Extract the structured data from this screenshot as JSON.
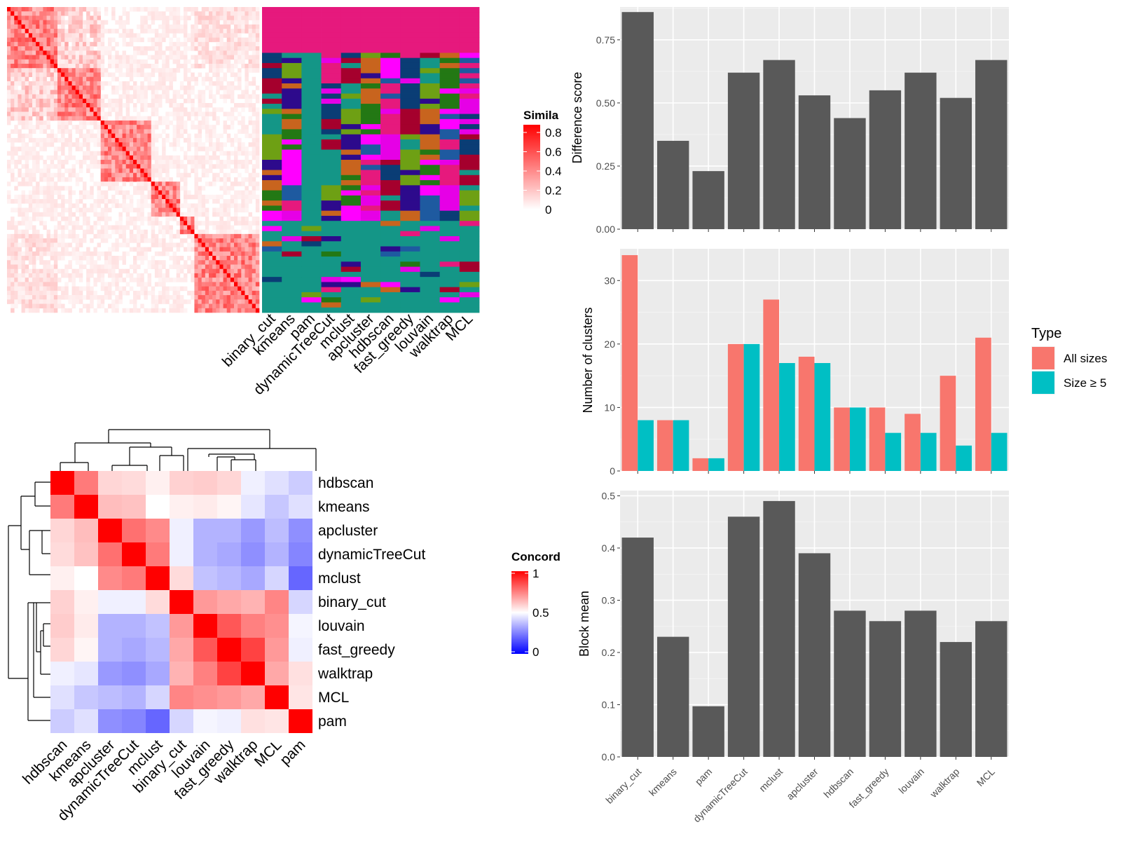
{
  "chart_data": [
    {
      "type": "heatmap",
      "legend_title": "Simila",
      "legend_ticks": [
        "0.8",
        "0.6",
        "0.4",
        "0.2",
        "0"
      ],
      "color_low": "#ffffff",
      "color_high": "#ff0000",
      "panel_columns": [
        "binary_cut",
        "kmeans",
        "pam",
        "dynamicTreeCut",
        "mclust",
        "apcluster",
        "hdbscan",
        "fast_greedy",
        "louvain",
        "walktrap",
        "MCL"
      ]
    },
    {
      "type": "heatmap",
      "legend_title": "Concord",
      "legend_ticks": [
        "1",
        "0.5",
        "0"
      ],
      "color_low": "#0000ff",
      "color_mid": "#ffffff",
      "color_high": "#ff0000",
      "rows": [
        "hdbscan",
        "kmeans",
        "apcluster",
        "dynamicTreeCut",
        "mclust",
        "binary_cut",
        "louvain",
        "fast_greedy",
        "walktrap",
        "MCL",
        "pam"
      ],
      "columns": [
        "hdbscan",
        "kmeans",
        "apcluster",
        "dynamicTreeCut",
        "mclust",
        "binary_cut",
        "louvain",
        "fast_greedy",
        "walktrap",
        "MCL",
        "pam"
      ],
      "values": [
        [
          1.0,
          0.76,
          0.58,
          0.57,
          0.53,
          0.59,
          0.6,
          0.58,
          0.47,
          0.44,
          0.4
        ],
        [
          0.76,
          1.0,
          0.63,
          0.62,
          0.5,
          0.53,
          0.54,
          0.52,
          0.45,
          0.39,
          0.44
        ],
        [
          0.58,
          0.63,
          1.0,
          0.78,
          0.73,
          0.47,
          0.35,
          0.35,
          0.3,
          0.37,
          0.28
        ],
        [
          0.57,
          0.62,
          0.78,
          1.0,
          0.76,
          0.47,
          0.35,
          0.33,
          0.28,
          0.35,
          0.26
        ],
        [
          0.53,
          0.5,
          0.73,
          0.76,
          1.0,
          0.57,
          0.38,
          0.36,
          0.33,
          0.42,
          0.2
        ],
        [
          0.59,
          0.53,
          0.47,
          0.47,
          0.57,
          1.0,
          0.7,
          0.67,
          0.65,
          0.74,
          0.42
        ],
        [
          0.6,
          0.54,
          0.35,
          0.35,
          0.38,
          0.7,
          1.0,
          0.83,
          0.75,
          0.72,
          0.48
        ],
        [
          0.58,
          0.52,
          0.35,
          0.33,
          0.36,
          0.67,
          0.83,
          1.0,
          0.87,
          0.7,
          0.47
        ],
        [
          0.47,
          0.45,
          0.3,
          0.28,
          0.33,
          0.65,
          0.75,
          0.87,
          1.0,
          0.67,
          0.56
        ],
        [
          0.44,
          0.39,
          0.37,
          0.35,
          0.42,
          0.74,
          0.72,
          0.7,
          0.67,
          1.0,
          0.55
        ],
        [
          0.4,
          0.44,
          0.28,
          0.26,
          0.2,
          0.42,
          0.48,
          0.47,
          0.56,
          0.55,
          1.0
        ]
      ]
    },
    {
      "type": "bar",
      "categories": [
        "binary_cut",
        "kmeans",
        "pam",
        "dynamicTreeCut",
        "mclust",
        "apcluster",
        "hdbscan",
        "fast_greedy",
        "louvain",
        "walktrap",
        "MCL"
      ],
      "values": [
        0.86,
        0.35,
        0.23,
        0.62,
        0.67,
        0.53,
        0.44,
        0.55,
        0.62,
        0.52,
        0.67
      ],
      "ylabel": "Difference score",
      "ylim": [
        0,
        0.88
      ],
      "yticks": [
        0,
        0.25,
        0.5,
        0.75
      ],
      "ytick_labels": [
        "0.00",
        "0.25",
        "0.50",
        "0.75"
      ],
      "grid": true
    },
    {
      "type": "bar",
      "categories": [
        "binary_cut",
        "kmeans",
        "pam",
        "dynamicTreeCut",
        "mclust",
        "apcluster",
        "hdbscan",
        "fast_greedy",
        "louvain",
        "walktrap",
        "MCL"
      ],
      "series": [
        {
          "name": "All sizes",
          "color": "#f8766d",
          "values": [
            34,
            8,
            2,
            20,
            27,
            18,
            10,
            10,
            9,
            15,
            21
          ]
        },
        {
          "name": "Size ≥ 5",
          "color": "#00bfc4",
          "values": [
            8,
            8,
            2,
            20,
            17,
            17,
            10,
            6,
            6,
            4,
            6
          ]
        }
      ],
      "ylabel": "Number of clusters",
      "ylim": [
        0,
        35
      ],
      "yticks": [
        0,
        10,
        20,
        30
      ],
      "ytick_labels": [
        "0",
        "10",
        "20",
        "30"
      ],
      "legend_title": "Type",
      "legend_position": "right",
      "grid": true
    },
    {
      "type": "bar",
      "categories": [
        "binary_cut",
        "kmeans",
        "pam",
        "dynamicTreeCut",
        "mclust",
        "apcluster",
        "hdbscan",
        "fast_greedy",
        "louvain",
        "walktrap",
        "MCL"
      ],
      "values": [
        0.42,
        0.23,
        0.097,
        0.46,
        0.49,
        0.39,
        0.28,
        0.26,
        0.28,
        0.22,
        0.26
      ],
      "ylabel": "Block mean",
      "ylim": [
        0,
        0.51
      ],
      "yticks": [
        0,
        0.1,
        0.2,
        0.3,
        0.4,
        0.5
      ],
      "ytick_labels": [
        "0.0",
        "0.1",
        "0.2",
        "0.3",
        "0.4",
        "0.5"
      ],
      "grid": true
    }
  ]
}
